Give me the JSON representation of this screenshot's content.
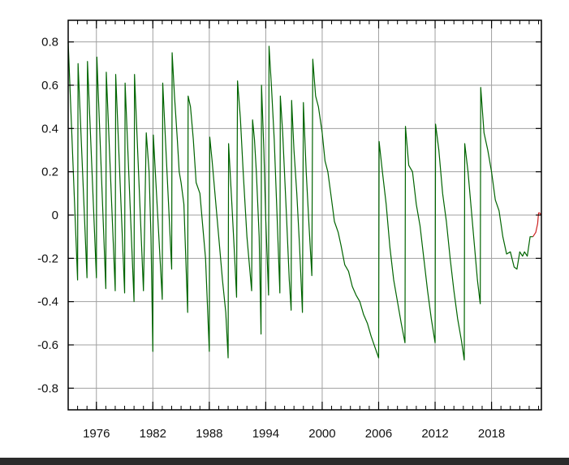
{
  "chart_data": {
    "type": "line",
    "title": "",
    "xlabel": "",
    "ylabel": "",
    "xlim": [
      1973,
      2023.3
    ],
    "ylim": [
      -0.9,
      0.9
    ],
    "grid": true,
    "x_ticks": [
      {
        "value": 1976,
        "label": "1976"
      },
      {
        "value": 1982,
        "label": "1982"
      },
      {
        "value": 1988,
        "label": "1988"
      },
      {
        "value": 1994,
        "label": "1994"
      },
      {
        "value": 2000,
        "label": "2000"
      },
      {
        "value": 2006,
        "label": "2006"
      },
      {
        "value": 2012,
        "label": "2012"
      },
      {
        "value": 2018,
        "label": "2018"
      }
    ],
    "x_minor_step": 1,
    "y_ticks": [
      {
        "value": 0.8,
        "label": "0.8"
      },
      {
        "value": 0.6,
        "label": "0.6"
      },
      {
        "value": 0.4,
        "label": "0.4"
      },
      {
        "value": 0.2,
        "label": "0.2"
      },
      {
        "value": 0,
        "label": "0"
      },
      {
        "value": -0.2,
        "label": "-0.2"
      },
      {
        "value": -0.4,
        "label": "-0.4"
      },
      {
        "value": -0.6,
        "label": "-0.6"
      },
      {
        "value": -0.8,
        "label": "-0.8"
      }
    ],
    "series": [
      {
        "color": "#006400",
        "points": [
          [
            1973.0,
            0.8
          ],
          [
            1974.0,
            -0.3
          ],
          [
            1974.05,
            0.7
          ],
          [
            1975.0,
            -0.29
          ],
          [
            1975.05,
            0.71
          ],
          [
            1976.0,
            -0.29
          ],
          [
            1976.05,
            0.73
          ],
          [
            1977.0,
            -0.34
          ],
          [
            1977.05,
            0.66
          ],
          [
            1978.0,
            -0.35
          ],
          [
            1978.05,
            0.65
          ],
          [
            1979.0,
            -0.36
          ],
          [
            1979.05,
            0.61
          ],
          [
            1980.0,
            -0.4
          ],
          [
            1980.05,
            0.65
          ],
          [
            1981.0,
            -0.35
          ],
          [
            1981.3,
            0.38
          ],
          [
            1981.6,
            0.2
          ],
          [
            1981.8,
            -0.1
          ],
          [
            1982.0,
            -0.63
          ],
          [
            1982.05,
            0.37
          ],
          [
            1983.0,
            -0.39
          ],
          [
            1983.05,
            0.61
          ],
          [
            1984.0,
            -0.25
          ],
          [
            1984.05,
            0.75
          ],
          [
            1984.3,
            0.55
          ],
          [
            1984.6,
            0.35
          ],
          [
            1984.8,
            0.2
          ],
          [
            1985.0,
            0.15
          ],
          [
            1985.3,
            0.05
          ],
          [
            1985.7,
            -0.45
          ],
          [
            1985.75,
            0.55
          ],
          [
            1986.0,
            0.5
          ],
          [
            1986.3,
            0.35
          ],
          [
            1986.6,
            0.15
          ],
          [
            1987.0,
            0.1
          ],
          [
            1987.3,
            -0.05
          ],
          [
            1987.6,
            -0.2
          ],
          [
            1988.0,
            -0.63
          ],
          [
            1988.05,
            0.36
          ],
          [
            1988.3,
            0.25
          ],
          [
            1988.6,
            0.1
          ],
          [
            1989.0,
            -0.1
          ],
          [
            1989.4,
            -0.3
          ],
          [
            1989.75,
            -0.45
          ],
          [
            1990.0,
            -0.66
          ],
          [
            1990.05,
            0.33
          ],
          [
            1990.4,
            0.05
          ],
          [
            1990.7,
            -0.2
          ],
          [
            1990.9,
            -0.38
          ],
          [
            1991.0,
            0.62
          ],
          [
            1991.3,
            0.45
          ],
          [
            1991.6,
            0.2
          ],
          [
            1991.8,
            0.05
          ],
          [
            1992.0,
            -0.1
          ],
          [
            1992.5,
            -0.35
          ],
          [
            1992.6,
            0.44
          ],
          [
            1992.8,
            0.35
          ],
          [
            1993.0,
            0.2
          ],
          [
            1993.3,
            -0.1
          ],
          [
            1993.5,
            -0.55
          ],
          [
            1993.55,
            0.6
          ],
          [
            1993.8,
            0.3
          ],
          [
            1994.0,
            -0.02
          ],
          [
            1994.3,
            -0.37
          ],
          [
            1994.35,
            0.78
          ],
          [
            1994.6,
            0.6
          ],
          [
            1994.9,
            0.35
          ],
          [
            1995.2,
            0.0
          ],
          [
            1995.5,
            -0.36
          ],
          [
            1995.55,
            0.55
          ],
          [
            1995.8,
            0.38
          ],
          [
            1996.2,
            0.0
          ],
          [
            1996.5,
            -0.3
          ],
          [
            1996.7,
            -0.44
          ],
          [
            1996.75,
            0.53
          ],
          [
            1997.0,
            0.3
          ],
          [
            1997.3,
            0.1
          ],
          [
            1997.6,
            -0.15
          ],
          [
            1997.9,
            -0.45
          ],
          [
            1998.0,
            0.52
          ],
          [
            1998.3,
            0.2
          ],
          [
            1998.6,
            -0.05
          ],
          [
            1998.9,
            -0.28
          ],
          [
            1999.0,
            0.72
          ],
          [
            1999.3,
            0.55
          ],
          [
            1999.6,
            0.5
          ],
          [
            2000.0,
            0.38
          ],
          [
            2000.3,
            0.25
          ],
          [
            2000.6,
            0.2
          ],
          [
            2001.0,
            0.07
          ],
          [
            2001.3,
            -0.03
          ],
          [
            2001.7,
            -0.08
          ],
          [
            2002.0,
            -0.14
          ],
          [
            2002.4,
            -0.23
          ],
          [
            2002.8,
            -0.26
          ],
          [
            2003.2,
            -0.33
          ],
          [
            2003.6,
            -0.37
          ],
          [
            2004.0,
            -0.4
          ],
          [
            2004.4,
            -0.46
          ],
          [
            2004.8,
            -0.5
          ],
          [
            2005.2,
            -0.56
          ],
          [
            2005.6,
            -0.61
          ],
          [
            2006.0,
            -0.66
          ],
          [
            2006.05,
            0.34
          ],
          [
            2006.4,
            0.2
          ],
          [
            2006.8,
            0.05
          ],
          [
            2007.2,
            -0.15
          ],
          [
            2007.6,
            -0.3
          ],
          [
            2008.0,
            -0.4
          ],
          [
            2008.4,
            -0.5
          ],
          [
            2008.8,
            -0.59
          ],
          [
            2008.85,
            0.41
          ],
          [
            2009.2,
            0.23
          ],
          [
            2009.6,
            0.2
          ],
          [
            2010.0,
            0.05
          ],
          [
            2010.4,
            -0.05
          ],
          [
            2010.8,
            -0.2
          ],
          [
            2011.2,
            -0.35
          ],
          [
            2011.6,
            -0.48
          ],
          [
            2012.0,
            -0.59
          ],
          [
            2012.05,
            0.42
          ],
          [
            2012.4,
            0.3
          ],
          [
            2012.8,
            0.1
          ],
          [
            2013.2,
            -0.03
          ],
          [
            2013.6,
            -0.2
          ],
          [
            2014.0,
            -0.35
          ],
          [
            2014.4,
            -0.48
          ],
          [
            2014.8,
            -0.58
          ],
          [
            2015.1,
            -0.67
          ],
          [
            2015.15,
            0.33
          ],
          [
            2015.5,
            0.2
          ],
          [
            2015.8,
            0.05
          ],
          [
            2016.2,
            -0.15
          ],
          [
            2016.5,
            -0.3
          ],
          [
            2016.8,
            -0.41
          ],
          [
            2016.85,
            0.59
          ],
          [
            2017.2,
            0.38
          ],
          [
            2017.6,
            0.3
          ],
          [
            2018.0,
            0.2
          ],
          [
            2018.4,
            0.07
          ],
          [
            2018.8,
            0.02
          ],
          [
            2019.2,
            -0.1
          ],
          [
            2019.6,
            -0.18
          ],
          [
            2020.0,
            -0.17
          ],
          [
            2020.4,
            -0.24
          ],
          [
            2020.7,
            -0.25
          ],
          [
            2021.0,
            -0.17
          ],
          [
            2021.3,
            -0.19
          ],
          [
            2021.5,
            -0.17
          ],
          [
            2021.8,
            -0.19
          ],
          [
            2022.1,
            -0.1
          ],
          [
            2022.4,
            -0.1
          ]
        ]
      },
      {
        "color": "#cc2222",
        "points": [
          [
            2022.4,
            -0.1
          ],
          [
            2022.7,
            -0.08
          ],
          [
            2022.9,
            -0.04
          ],
          [
            2023.0,
            0.01
          ],
          [
            2023.1,
            0.01
          ],
          [
            2023.3,
            0.0
          ]
        ]
      }
    ]
  }
}
